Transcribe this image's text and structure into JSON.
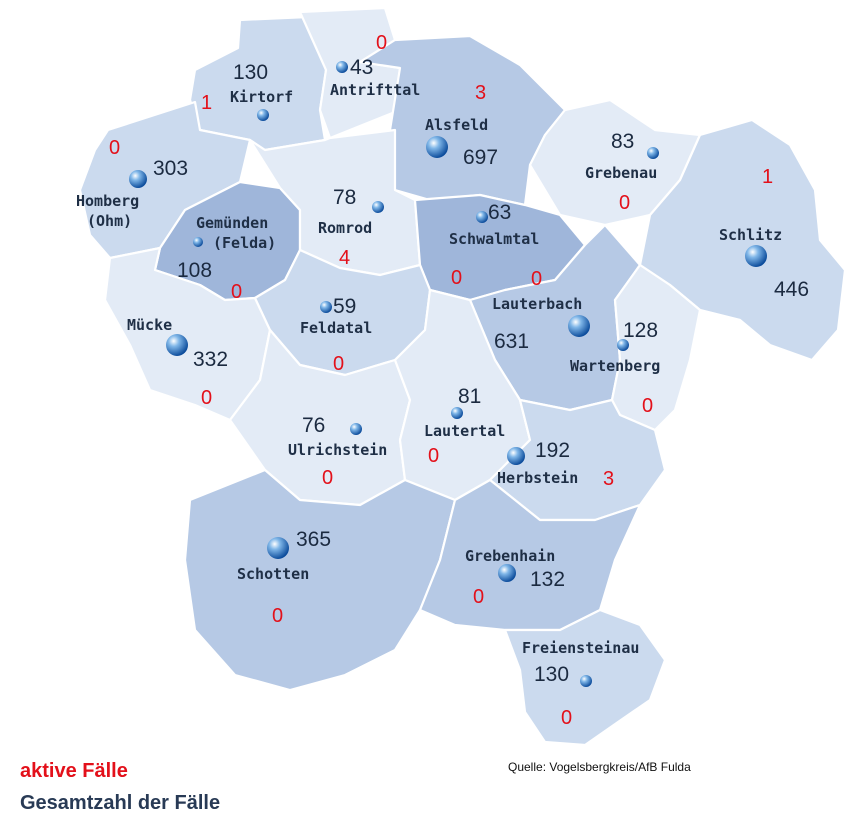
{
  "legend": {
    "active_label": "aktive Fälle",
    "total_label": "Gesamtzahl der Fälle"
  },
  "source": "Quelle: Vogelsbergkreis/AfB Fulda",
  "colors": {
    "active": "#e3101a",
    "total": "#1b2a40",
    "region_light": "#e3ebf6",
    "region_mid": "#cbdaee",
    "region_dark": "#9fb6da"
  },
  "towns": [
    {
      "id": "kirtorf",
      "name": "Kirtorf",
      "total": "130",
      "active": "1"
    },
    {
      "id": "antrifttal",
      "name": "Antrifttal",
      "total": "43",
      "active": "0"
    },
    {
      "id": "alsfeld",
      "name": "Alsfeld",
      "total": "697",
      "active": "3"
    },
    {
      "id": "homberg",
      "name": "Homberg",
      "name2": "(Ohm)",
      "total": "303",
      "active": "0"
    },
    {
      "id": "grebenau",
      "name": "Grebenau",
      "total": "83",
      "active": "0"
    },
    {
      "id": "schlitz",
      "name": "Schlitz",
      "total": "446",
      "active": "1"
    },
    {
      "id": "gemuenden",
      "name": "Gemünden",
      "name2": "(Felda)",
      "total": "108",
      "active": "0"
    },
    {
      "id": "romrod",
      "name": "Romrod",
      "total": "78",
      "active": "4"
    },
    {
      "id": "schwalmtal",
      "name": "Schwalmtal",
      "total": "63",
      "active": "0"
    },
    {
      "id": "lauterbach",
      "name": "Lauterbach",
      "total": "631",
      "active": "0"
    },
    {
      "id": "muecke",
      "name": "Mücke",
      "total": "332",
      "active": "0"
    },
    {
      "id": "feldatal",
      "name": "Feldatal",
      "total": "59",
      "active": "0"
    },
    {
      "id": "wartenberg",
      "name": "Wartenberg",
      "total": "128",
      "active": "0"
    },
    {
      "id": "ulrichstein",
      "name": "Ulrichstein",
      "total": "76",
      "active": "0"
    },
    {
      "id": "lautertal",
      "name": "Lautertal",
      "total": "81",
      "active": "0"
    },
    {
      "id": "herbstein",
      "name": "Herbstein",
      "total": "192",
      "active": "3"
    },
    {
      "id": "schotten",
      "name": "Schotten",
      "total": "365",
      "active": "0"
    },
    {
      "id": "grebenhain",
      "name": "Grebenhain",
      "total": "132",
      "active": "0"
    },
    {
      "id": "freiensteinau",
      "name": "Freiensteinau",
      "total": "130",
      "active": "0"
    }
  ]
}
